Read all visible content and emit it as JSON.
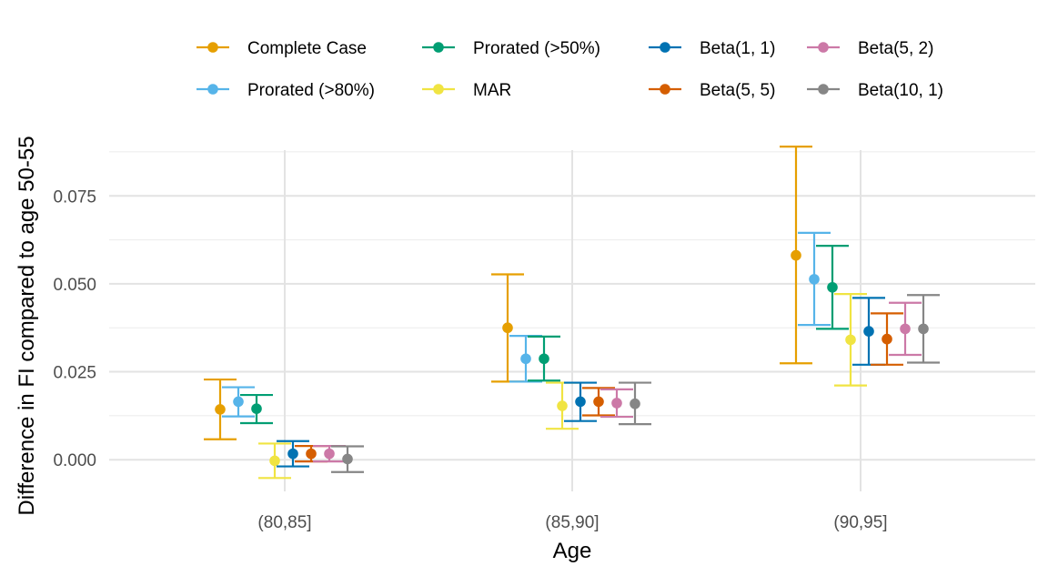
{
  "chart_data": {
    "type": "scatter",
    "subtype": "point-errorbar",
    "xlabel": "Age",
    "ylabel": "Difference in FI compared to age 50-55",
    "categories": [
      "(80,85]",
      "(85,90]",
      "(90,95]"
    ],
    "ylim": [
      -0.009,
      0.088
    ],
    "y_ticks": [
      0.0,
      0.025,
      0.05,
      0.075
    ],
    "y_tick_labels": [
      "0.000",
      "0.025",
      "0.050",
      "0.075"
    ],
    "grid": true,
    "legend_position": "top",
    "series": [
      {
        "name": "Complete Case",
        "color": "#E69F00",
        "points": [
          {
            "y": 0.0143,
            "lo": 0.0058,
            "hi": 0.0228
          },
          {
            "y": 0.0375,
            "lo": 0.0222,
            "hi": 0.0527
          },
          {
            "y": 0.0581,
            "lo": 0.0274,
            "hi": 0.089
          }
        ]
      },
      {
        "name": "Prorated (>80%)",
        "color": "#56B4E9",
        "points": [
          {
            "y": 0.0165,
            "lo": 0.0123,
            "hi": 0.0206
          },
          {
            "y": 0.0287,
            "lo": 0.0222,
            "hi": 0.0352
          },
          {
            "y": 0.0513,
            "lo": 0.0383,
            "hi": 0.0645
          }
        ]
      },
      {
        "name": "Prorated (>50%)",
        "color": "#009E73",
        "points": [
          {
            "y": 0.0145,
            "lo": 0.0104,
            "hi": 0.0184
          },
          {
            "y": 0.0287,
            "lo": 0.0225,
            "hi": 0.035
          },
          {
            "y": 0.049,
            "lo": 0.0372,
            "hi": 0.0608
          }
        ]
      },
      {
        "name": "MAR",
        "color": "#F0E442",
        "points": [
          {
            "y": -0.0003,
            "lo": -0.0052,
            "hi": 0.0046
          },
          {
            "y": 0.0153,
            "lo": 0.0088,
            "hi": 0.0219
          },
          {
            "y": 0.0341,
            "lo": 0.0211,
            "hi": 0.0471
          }
        ]
      },
      {
        "name": "Beta(1, 1)",
        "color": "#0072B2",
        "points": [
          {
            "y": 0.0017,
            "lo": -0.0019,
            "hi": 0.0053
          },
          {
            "y": 0.0165,
            "lo": 0.011,
            "hi": 0.0219
          },
          {
            "y": 0.0365,
            "lo": 0.027,
            "hi": 0.046
          }
        ]
      },
      {
        "name": "Beta(5, 5)",
        "color": "#D55E00",
        "points": [
          {
            "y": 0.0017,
            "lo": -0.0005,
            "hi": 0.0039
          },
          {
            "y": 0.0165,
            "lo": 0.0126,
            "hi": 0.0204
          },
          {
            "y": 0.0343,
            "lo": 0.027,
            "hi": 0.0416
          }
        ]
      },
      {
        "name": "Beta(5, 2)",
        "color": "#CC79A7",
        "points": [
          {
            "y": 0.0017,
            "lo": -0.0005,
            "hi": 0.0039
          },
          {
            "y": 0.0161,
            "lo": 0.0122,
            "hi": 0.02
          },
          {
            "y": 0.0372,
            "lo": 0.0298,
            "hi": 0.0446
          }
        ]
      },
      {
        "name": "Beta(10, 1)",
        "color": "#868686",
        "points": [
          {
            "y": 0.0002,
            "lo": -0.0035,
            "hi": 0.0038
          },
          {
            "y": 0.0159,
            "lo": 0.0101,
            "hi": 0.0219
          },
          {
            "y": 0.0372,
            "lo": 0.0276,
            "hi": 0.0468
          }
        ]
      }
    ]
  }
}
